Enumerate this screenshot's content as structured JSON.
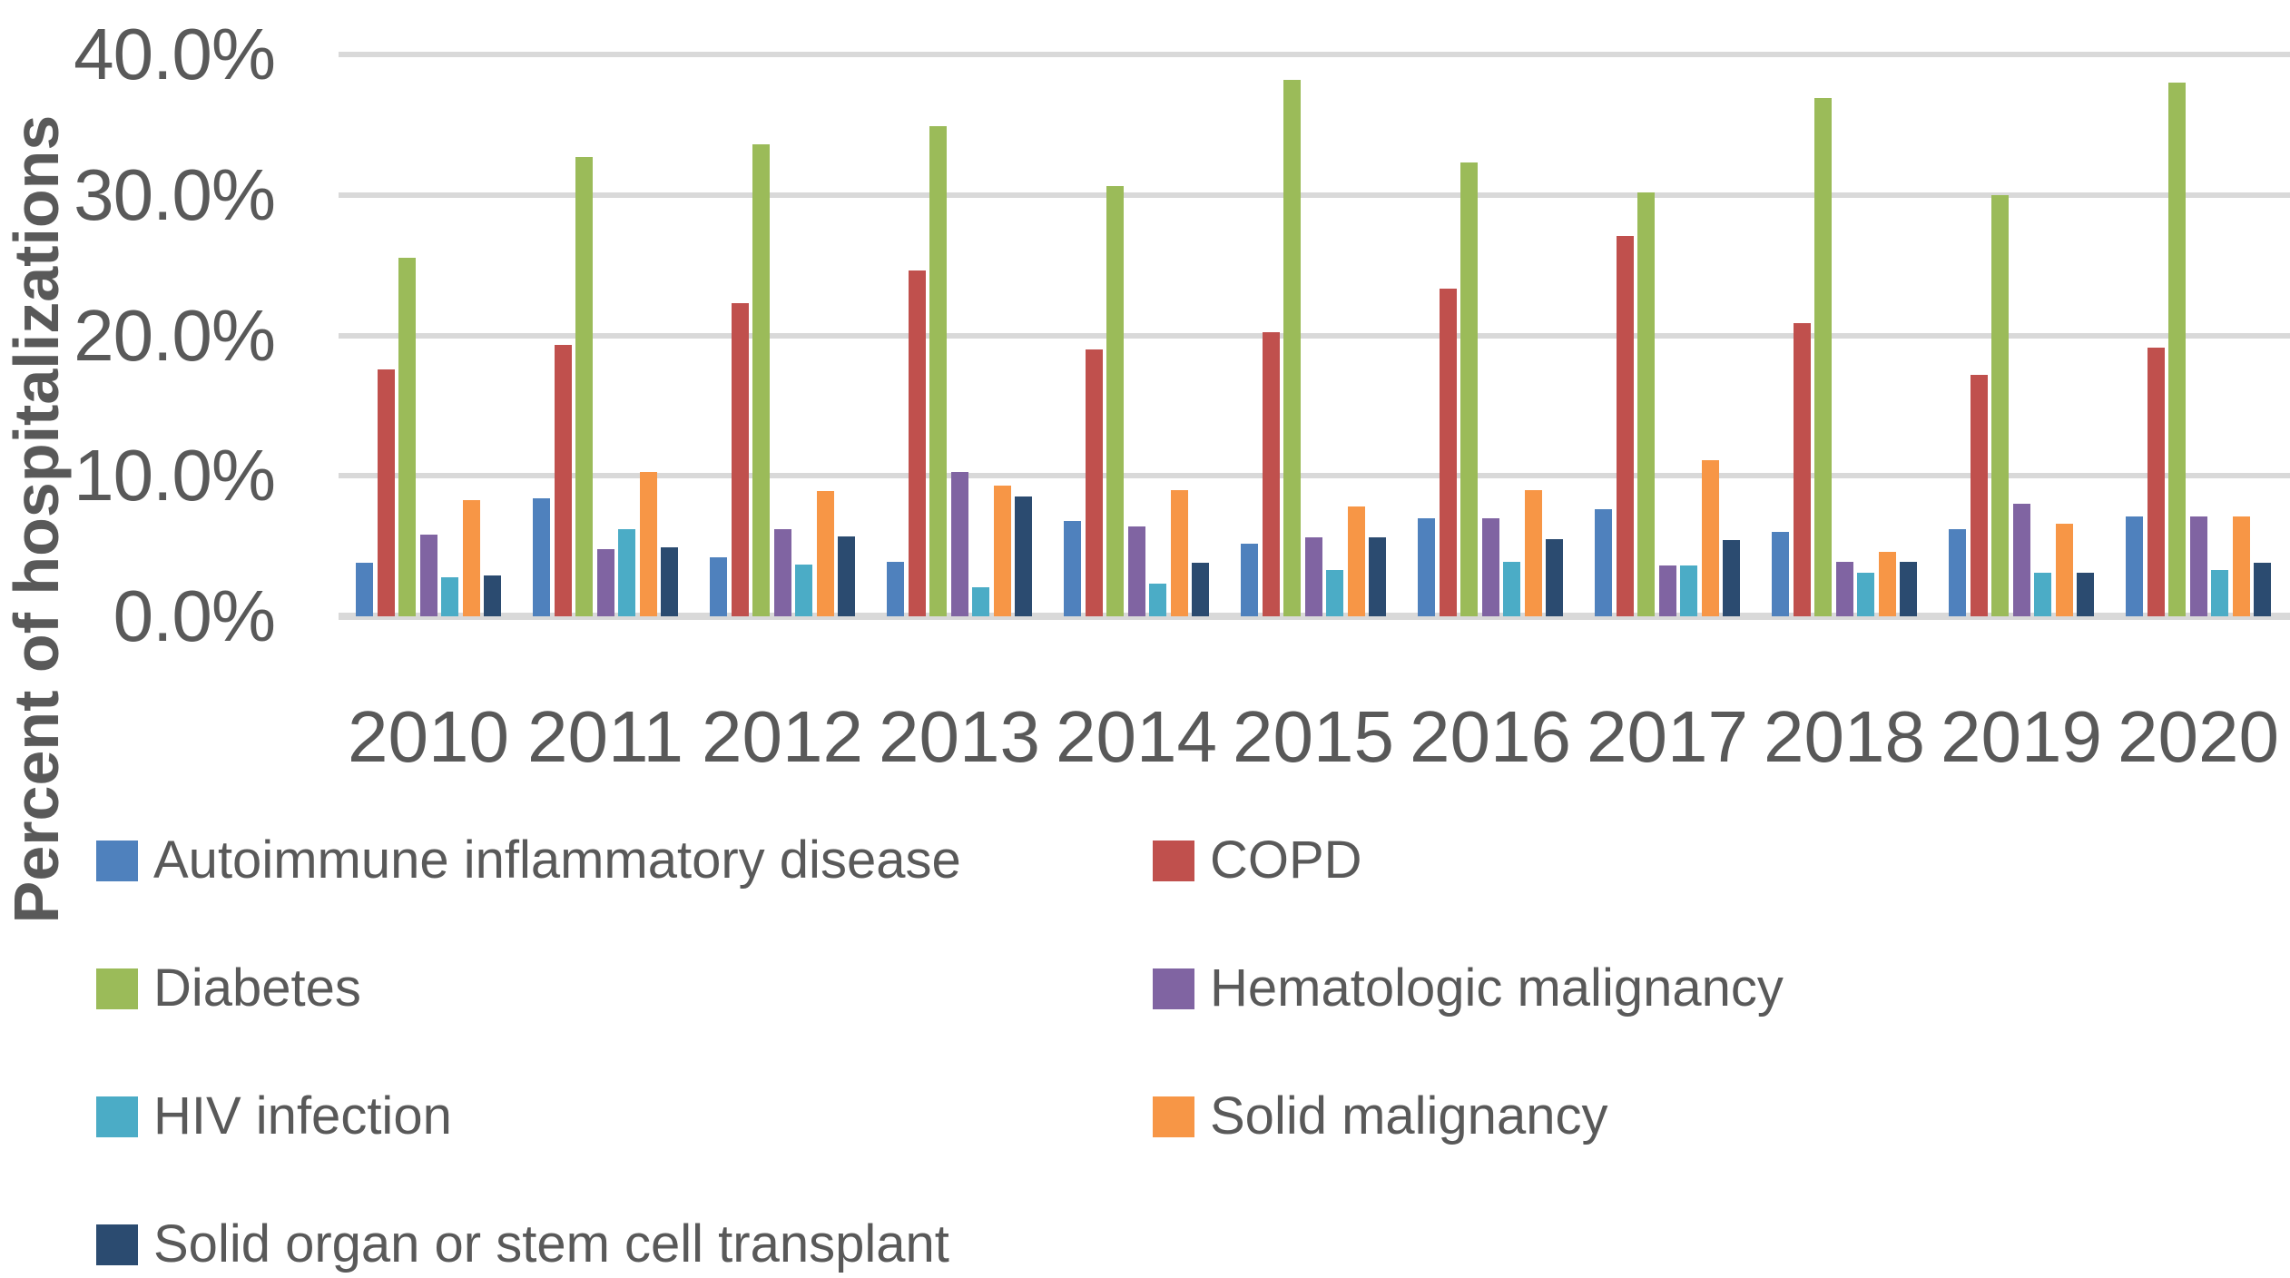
{
  "chart_data": {
    "type": "bar",
    "title": "",
    "xlabel": "",
    "ylabel": "Percent of hospitalizations",
    "categories": [
      "2010",
      "2011",
      "2012",
      "2013",
      "2014",
      "2015",
      "2016",
      "2017",
      "2018",
      "2019",
      "2020"
    ],
    "series": [
      {
        "name": "Autoimmune inflammatory disease",
        "color": "#4F81BD",
        "values": [
          3.8,
          8.4,
          4.2,
          3.9,
          6.8,
          5.2,
          7.0,
          7.6,
          6.0,
          6.2,
          7.1
        ]
      },
      {
        "name": "COPD",
        "color": "#C0504D",
        "values": [
          17.6,
          19.3,
          22.3,
          24.6,
          19.0,
          20.2,
          23.3,
          27.1,
          20.9,
          17.2,
          19.1
        ]
      },
      {
        "name": "Diabetes",
        "color": "#9BBB59",
        "values": [
          25.5,
          32.7,
          33.6,
          34.9,
          30.6,
          38.2,
          32.3,
          30.2,
          36.9,
          30.0,
          38.0
        ]
      },
      {
        "name": "Hematologic malignancy",
        "color": "#8064A2",
        "values": [
          5.8,
          4.8,
          6.2,
          10.3,
          6.4,
          5.6,
          7.0,
          3.6,
          3.9,
          8.0,
          7.1
        ]
      },
      {
        "name": "HIV infection",
        "color": "#4BACC6",
        "values": [
          2.8,
          6.2,
          3.7,
          2.1,
          2.3,
          3.3,
          3.9,
          3.6,
          3.1,
          3.1,
          3.3
        ]
      },
      {
        "name": "Solid malignancy",
        "color": "#F79646",
        "values": [
          8.3,
          10.3,
          8.9,
          9.3,
          9.0,
          7.8,
          9.0,
          11.1,
          4.6,
          6.6,
          7.1
        ]
      },
      {
        "name": "Solid organ or stem cell transplant",
        "color": "#2B4B70",
        "values": [
          2.9,
          4.9,
          5.7,
          8.5,
          3.8,
          5.6,
          5.5,
          5.4,
          3.9,
          3.1,
          3.8
        ]
      }
    ],
    "y_ticks": [
      "40.0%",
      "30.0%",
      "20.0%",
      "10.0%",
      "0.0%"
    ],
    "ylim": [
      0,
      40
    ],
    "grid": true,
    "grid_color": "#D9D9D9",
    "text_color": "#595959",
    "legend_position": "bottom"
  }
}
